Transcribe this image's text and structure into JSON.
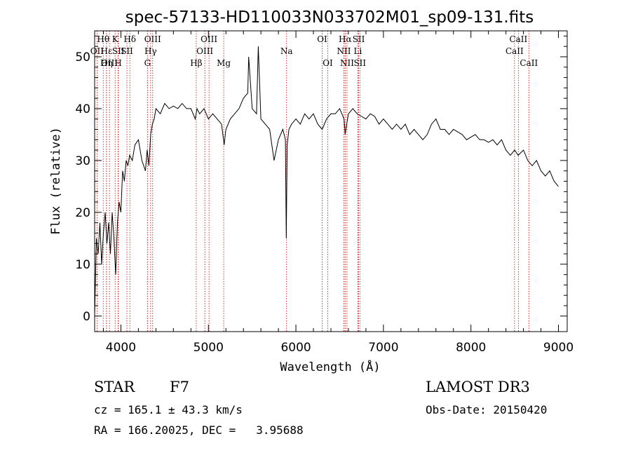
{
  "chart_data": {
    "type": "line",
    "title": "spec-57133-HD110033N033702M01_sp09-131.fits",
    "xlabel": "Wavelength (Å)",
    "ylabel": "Flux (relative)",
    "xlim": [
      3700,
      9100
    ],
    "ylim": [
      -3,
      55
    ],
    "x_ticks": [
      4000,
      5000,
      6000,
      7000,
      8000,
      9000
    ],
    "y_ticks": [
      0,
      10,
      20,
      30,
      40,
      50
    ],
    "grid": false,
    "line_color": "#000000",
    "marker_color": "#cc0000",
    "series": [
      {
        "x": [
          3700,
          3720,
          3740,
          3760,
          3780,
          3800,
          3820,
          3840,
          3860,
          3880,
          3900,
          3920,
          3940,
          3960,
          3980,
          4000,
          4020,
          4040,
          4060,
          4080,
          4100,
          4130,
          4160,
          4200,
          4240,
          4280,
          4300,
          4320,
          4340,
          4360,
          4380,
          4400,
          4450,
          4500,
          4550,
          4600,
          4650,
          4700,
          4750,
          4800,
          4850,
          4870,
          4900,
          4950,
          5000,
          5050,
          5100,
          5150,
          5180,
          5200,
          5250,
          5300,
          5350,
          5400,
          5450,
          5460,
          5500,
          5550,
          5570,
          5600,
          5650,
          5700,
          5750,
          5800,
          5850,
          5880,
          5890,
          5900,
          5920,
          5950,
          6000,
          6050,
          6100,
          6150,
          6200,
          6250,
          6300,
          6350,
          6400,
          6450,
          6500,
          6550,
          6563,
          6580,
          6600,
          6650,
          6700,
          6750,
          6800,
          6850,
          6900,
          6950,
          7000,
          7050,
          7100,
          7150,
          7200,
          7250,
          7300,
          7350,
          7400,
          7450,
          7500,
          7550,
          7600,
          7650,
          7700,
          7750,
          7800,
          7850,
          7900,
          7950,
          8000,
          8050,
          8100,
          8150,
          8200,
          8250,
          8300,
          8350,
          8400,
          8450,
          8500,
          8540,
          8600,
          8650,
          8700,
          8750,
          8800,
          8850,
          8900,
          8950,
          9000
        ],
        "y": [
          0,
          15,
          12,
          18,
          10,
          16,
          20,
          14,
          18,
          12,
          20,
          15,
          8,
          18,
          22,
          20,
          28,
          26,
          30,
          29,
          31,
          30,
          33,
          34,
          30,
          28,
          32,
          29,
          35,
          37,
          38,
          40,
          39,
          41,
          40,
          40.5,
          40,
          41,
          40,
          40,
          38,
          40,
          39,
          40,
          38,
          39,
          38,
          37,
          33,
          36,
          38,
          39,
          40,
          42,
          43,
          50,
          40,
          39,
          52,
          38,
          37,
          36,
          30,
          34,
          36,
          34,
          15,
          33,
          36,
          37,
          38,
          37,
          39,
          38,
          39,
          37,
          36,
          38,
          39,
          39,
          40,
          38,
          35,
          37,
          39,
          40,
          39,
          38.5,
          38,
          39,
          38.5,
          37,
          38,
          37,
          36,
          37,
          36,
          37,
          35,
          36,
          35,
          34,
          35,
          37,
          38,
          36,
          36,
          35,
          36,
          35.5,
          35,
          34,
          34.5,
          35,
          34,
          34,
          33.5,
          34,
          33,
          34,
          32,
          31,
          32,
          31,
          32,
          30,
          29,
          30,
          28,
          27,
          28,
          26,
          25
        ]
      }
    ],
    "lines": [
      {
        "label": "Hθ",
        "x": 3798,
        "row": 0
      },
      {
        "label": "Hε",
        "x": 3835,
        "row": 1
      },
      {
        "label": "OII",
        "x": 3727,
        "row": 1
      },
      {
        "label": "Hη",
        "x": 3835,
        "row": 2
      },
      {
        "label": "OIII",
        "x": 3869,
        "row": 2
      },
      {
        "label": "K",
        "x": 3934,
        "row": 0
      },
      {
        "label": "SII",
        "x": 3970,
        "row": 1
      },
      {
        "label": "H",
        "x": 3968,
        "row": 2
      },
      {
        "label": "Hδ",
        "x": 4102,
        "row": 0
      },
      {
        "label": "SII",
        "x": 4069,
        "row": 1
      },
      {
        "label": "OIII",
        "x": 4363,
        "row": 0
      },
      {
        "label": "Hγ",
        "x": 4340,
        "row": 1
      },
      {
        "label": "G",
        "x": 4304,
        "row": 2
      },
      {
        "label": "OIII",
        "x": 5007,
        "row": 0
      },
      {
        "label": "OIII",
        "x": 4959,
        "row": 1
      },
      {
        "label": "Hβ",
        "x": 4861,
        "row": 2
      },
      {
        "label": "Mg",
        "x": 5175,
        "row": 2
      },
      {
        "label": "Na",
        "x": 5893,
        "row": 1
      },
      {
        "label": "OI",
        "x": 6300,
        "row": 0
      },
      {
        "label": "OI",
        "x": 6364,
        "row": 2
      },
      {
        "label": "Hα",
        "x": 6563,
        "row": 0
      },
      {
        "label": "NII",
        "x": 6548,
        "row": 1
      },
      {
        "label": "NII",
        "x": 6584,
        "row": 2
      },
      {
        "label": "SII",
        "x": 6717,
        "row": 0
      },
      {
        "label": "Li",
        "x": 6708,
        "row": 1
      },
      {
        "label": "SII",
        "x": 6731,
        "row": 2
      },
      {
        "label": "CaII",
        "x": 8542,
        "row": 0
      },
      {
        "label": "CaII",
        "x": 8498,
        "row": 1
      },
      {
        "label": "CaII",
        "x": 8662,
        "row": 2
      }
    ]
  },
  "info": {
    "object_type": "STAR",
    "subclass": "F7",
    "survey": "LAMOST DR3",
    "redshift": "cz = 165.1 ± 43.3 km/s",
    "obs_date": "Obs-Date: 20150420",
    "coords": "RA = 166.20025, DEC =   3.95688"
  }
}
